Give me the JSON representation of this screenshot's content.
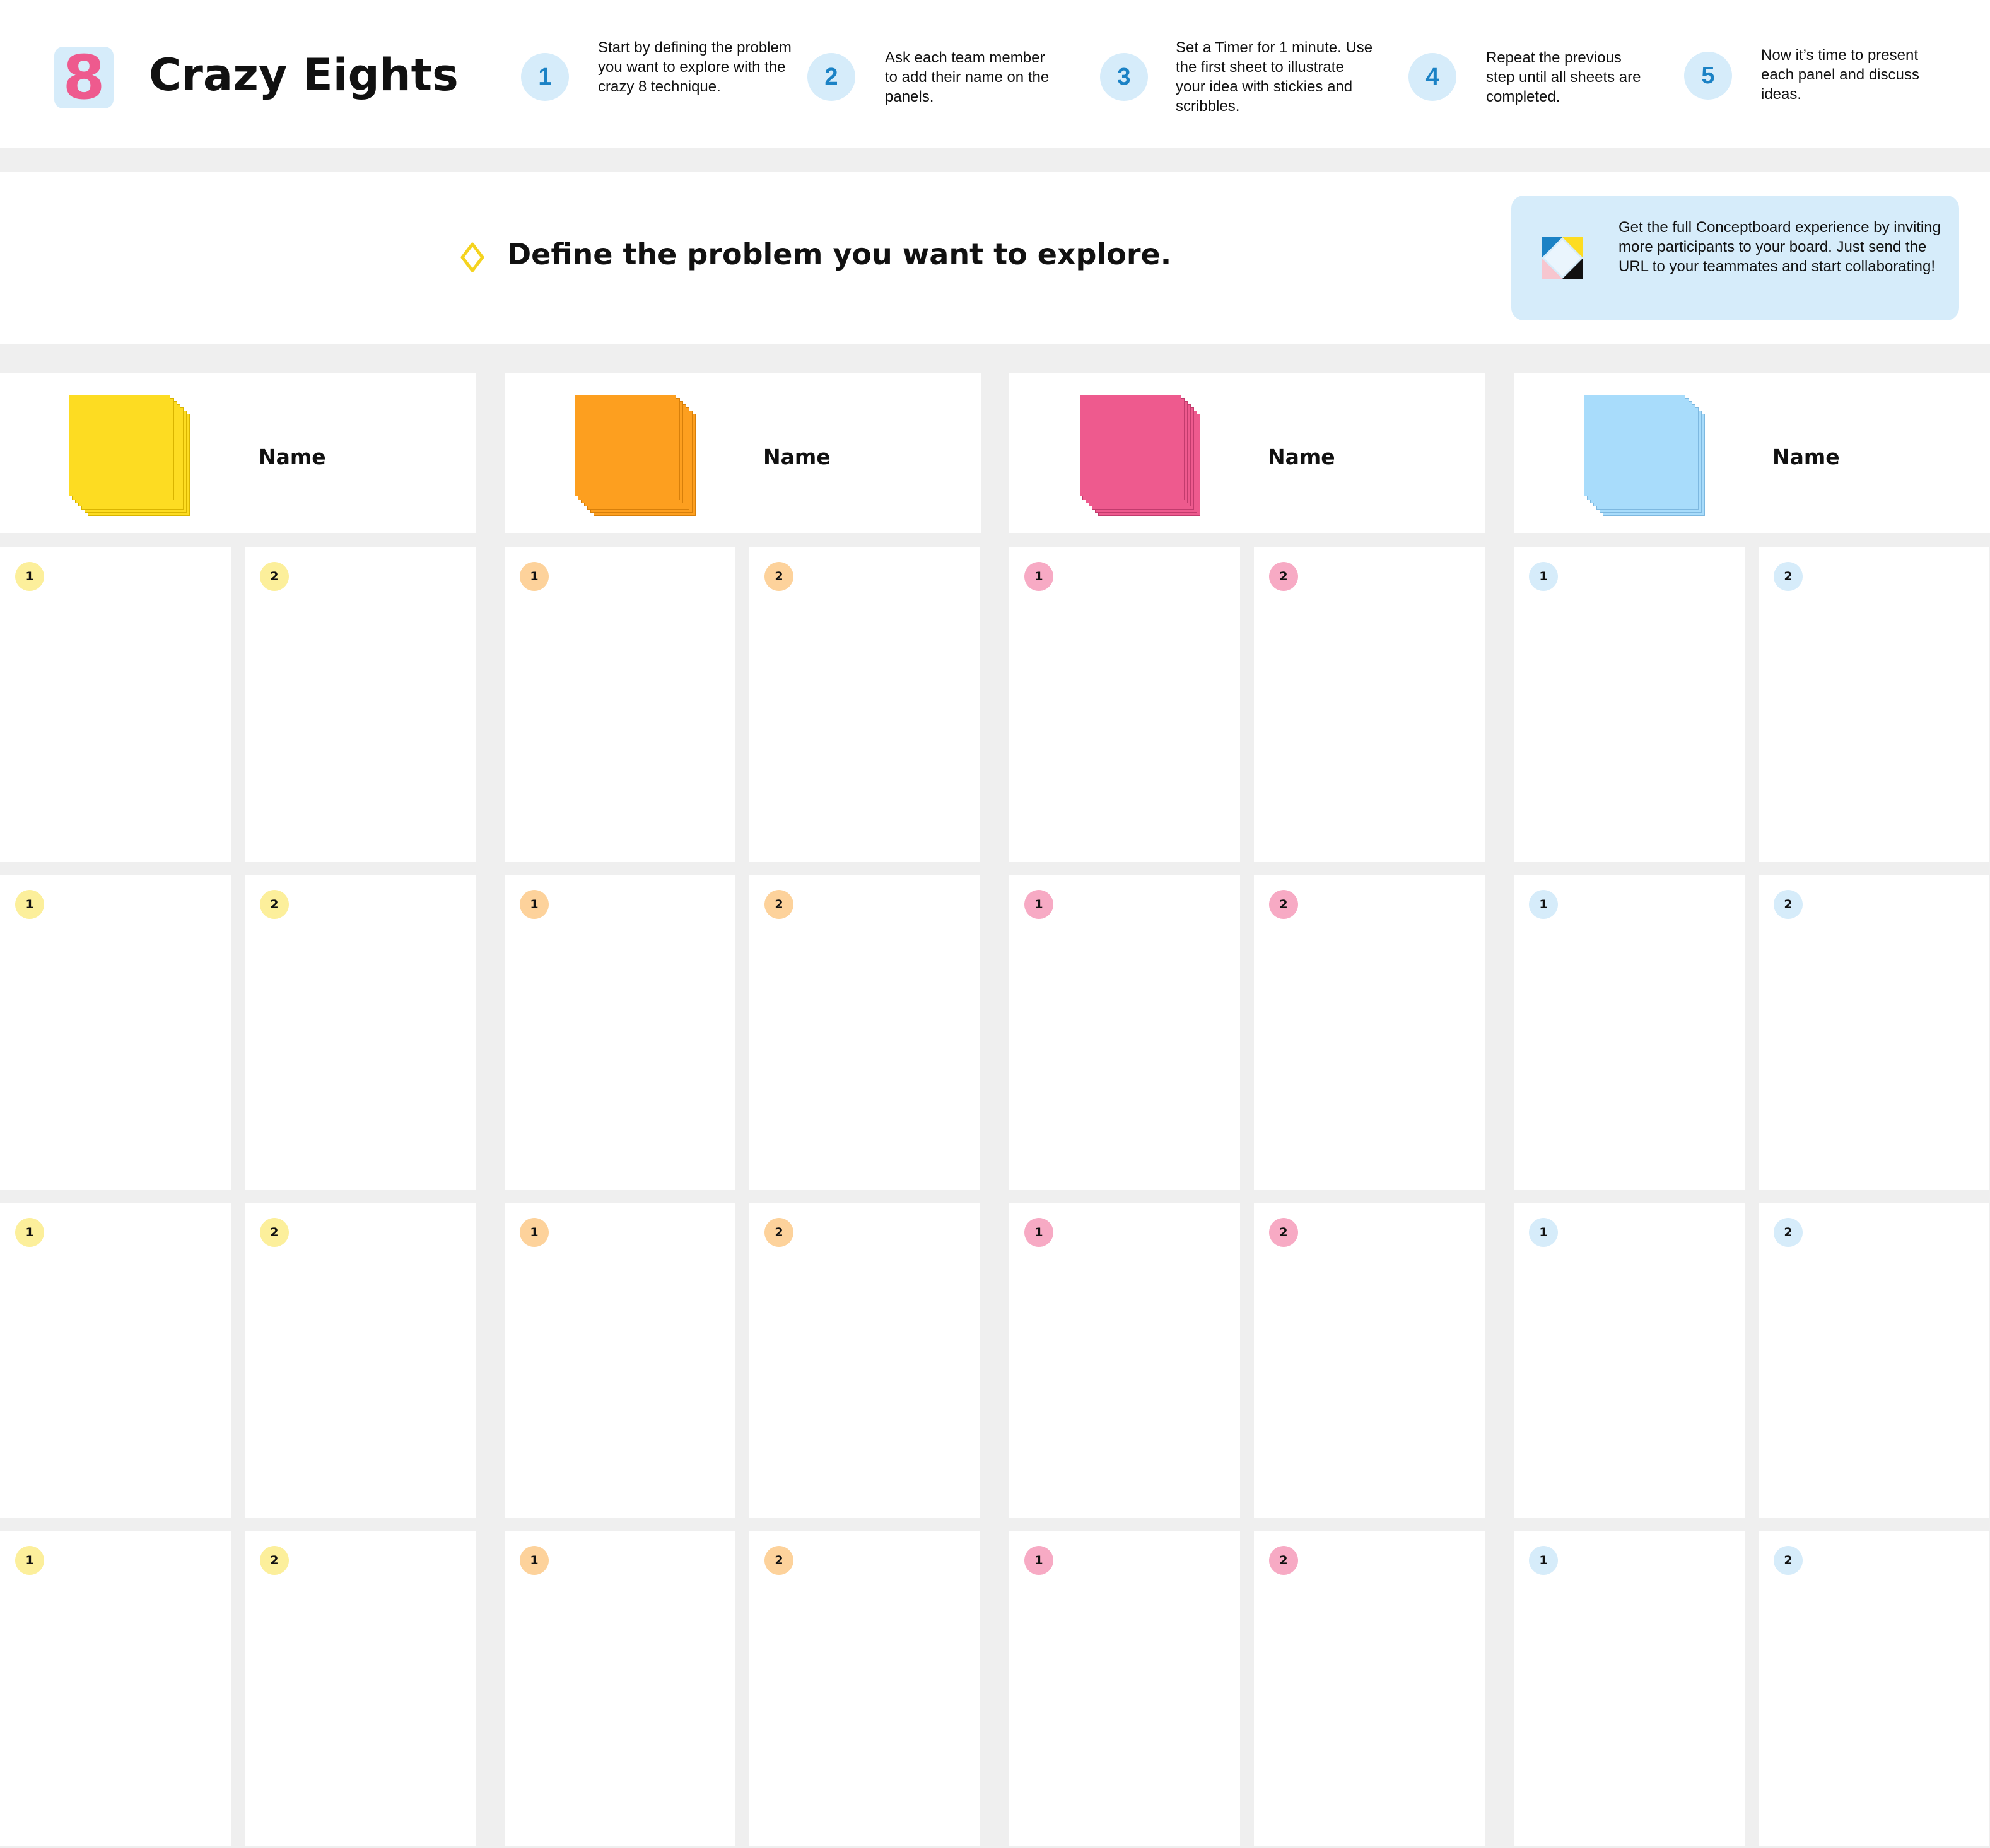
{
  "header": {
    "logo_glyph": "8",
    "title": "Crazy Eights",
    "steps": [
      {
        "number": "1",
        "text": "Start by defining the problem you want to explore with the crazy 8 technique."
      },
      {
        "number": "2",
        "text": "Ask each team member to add their name on the panels."
      },
      {
        "number": "3",
        "text": "Set a Timer for 1 minute. Use the first sheet to illustrate your idea with stickies and scribbles."
      },
      {
        "number": "4",
        "text": "Repeat the previous step until all sheets are completed."
      },
      {
        "number": "5",
        "text": "Now it’s time to present each panel and discuss ideas."
      }
    ]
  },
  "problem": {
    "prompt": "Define the problem you want to explore.",
    "icon": "diamond-outline-icon",
    "accent": "#f5d31f"
  },
  "promo": {
    "text": "Get the full Conceptboard experience by inviting more participants to your board. Just send the URL to your teammates and start collaborating!",
    "icon": "conceptboard-logo-icon"
  },
  "columns": [
    {
      "name_label": "Name",
      "sticky_color": "#fddc22",
      "sticky_edge": "#d9b400",
      "badge_color": "#fcef9b",
      "panel_labels": [
        "1",
        "2",
        "1",
        "2",
        "1",
        "2",
        "1",
        "2"
      ]
    },
    {
      "name_label": "Name",
      "sticky_color": "#fd9f1f",
      "sticky_edge": "#d77f0a",
      "badge_color": "#fdd29b",
      "panel_labels": [
        "1",
        "2",
        "1",
        "2",
        "1",
        "2",
        "1",
        "2"
      ]
    },
    {
      "name_label": "Name",
      "sticky_color": "#ee5a8e",
      "sticky_edge": "#c23b6d",
      "badge_color": "#f7aac4",
      "panel_labels": [
        "1",
        "2",
        "1",
        "2",
        "1",
        "2",
        "1",
        "2"
      ]
    },
    {
      "name_label": "Name",
      "sticky_color": "#a8dcfb",
      "sticky_edge": "#7db8e0",
      "badge_color": "#d6ecfa",
      "panel_labels": [
        "1",
        "2",
        "1",
        "2",
        "1",
        "2",
        "1",
        "2"
      ]
    }
  ]
}
